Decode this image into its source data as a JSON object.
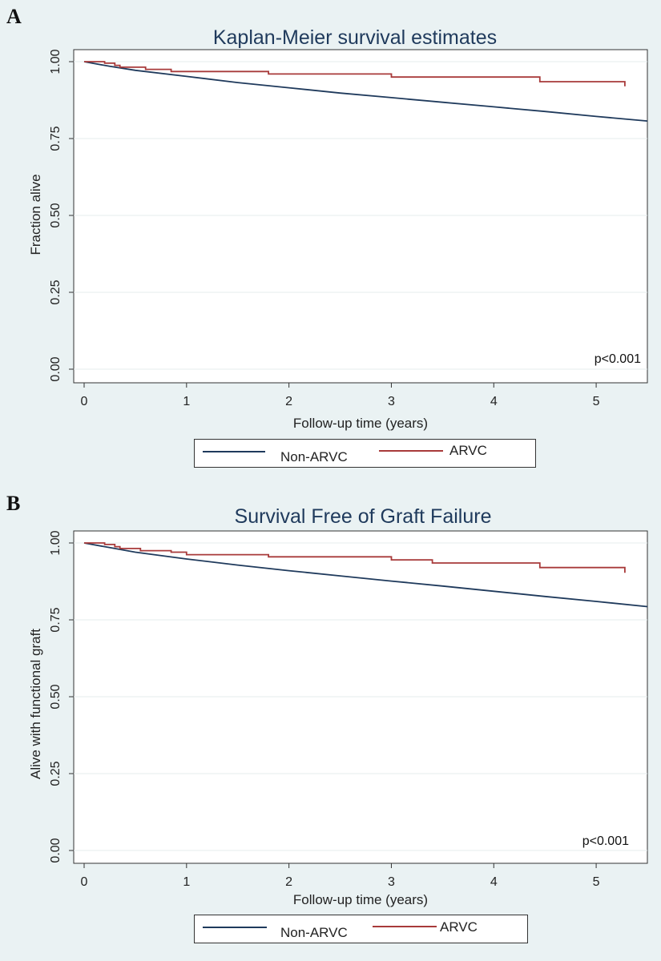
{
  "colors": {
    "non_arvc": "#1f3a5c",
    "arvc": "#a83a3a",
    "title": "#1f3a5c",
    "background": "#eaf2f3"
  },
  "chart_data": [
    {
      "panel": "A",
      "type": "line",
      "title": "Kaplan-Meier survival estimates",
      "xlabel": "Follow-up time (years)",
      "ylabel": "Fraction alive",
      "xlim": [
        0,
        5.5
      ],
      "ylim": [
        0,
        1
      ],
      "xticks": [
        "0",
        "1",
        "2",
        "3",
        "4",
        "5"
      ],
      "yticks": [
        "0.00",
        "0.25",
        "0.50",
        "0.75",
        "1.00"
      ],
      "annotation": "p<0.001",
      "grid": true,
      "legend_position": "bottom",
      "series": [
        {
          "name": "Non-ARVC",
          "step": false,
          "x": [
            0,
            0.25,
            0.5,
            1,
            1.5,
            2,
            2.5,
            3,
            3.5,
            4,
            4.5,
            5,
            5.5
          ],
          "y": [
            1.0,
            0.985,
            0.972,
            0.952,
            0.932,
            0.915,
            0.898,
            0.883,
            0.868,
            0.853,
            0.838,
            0.822,
            0.807
          ]
        },
        {
          "name": "ARVC",
          "step": true,
          "x": [
            0,
            0.2,
            0.3,
            0.35,
            0.6,
            0.85,
            1.8,
            3.0,
            4.45,
            5.28,
            5.28
          ],
          "y": [
            1.0,
            0.995,
            0.988,
            0.982,
            0.975,
            0.968,
            0.96,
            0.95,
            0.935,
            0.935,
            0.92
          ]
        }
      ]
    },
    {
      "panel": "B",
      "type": "line",
      "title": "Survival Free of Graft Failure",
      "xlabel": "Follow-up time (years)",
      "ylabel": "Alive with functional graft",
      "xlim": [
        0,
        5.5
      ],
      "ylim": [
        0,
        1
      ],
      "xticks": [
        "0",
        "1",
        "2",
        "3",
        "4",
        "5"
      ],
      "yticks": [
        "0.00",
        "0.25",
        "0.50",
        "0.75",
        "1.00"
      ],
      "annotation": "p<0.001",
      "grid": true,
      "legend_position": "bottom",
      "series": [
        {
          "name": "Non-ARVC",
          "step": false,
          "x": [
            0,
            0.25,
            0.5,
            1,
            1.5,
            2,
            2.5,
            3,
            3.5,
            4,
            4.5,
            5,
            5.5
          ],
          "y": [
            1.0,
            0.985,
            0.97,
            0.948,
            0.928,
            0.91,
            0.893,
            0.876,
            0.86,
            0.843,
            0.826,
            0.81,
            0.793
          ]
        },
        {
          "name": "ARVC",
          "step": true,
          "x": [
            0,
            0.2,
            0.3,
            0.35,
            0.55,
            0.85,
            1.0,
            1.8,
            3.0,
            3.4,
            4.45,
            5.28,
            5.28
          ],
          "y": [
            1.0,
            0.995,
            0.988,
            0.982,
            0.975,
            0.97,
            0.962,
            0.955,
            0.945,
            0.935,
            0.92,
            0.92,
            0.903
          ]
        }
      ]
    }
  ]
}
